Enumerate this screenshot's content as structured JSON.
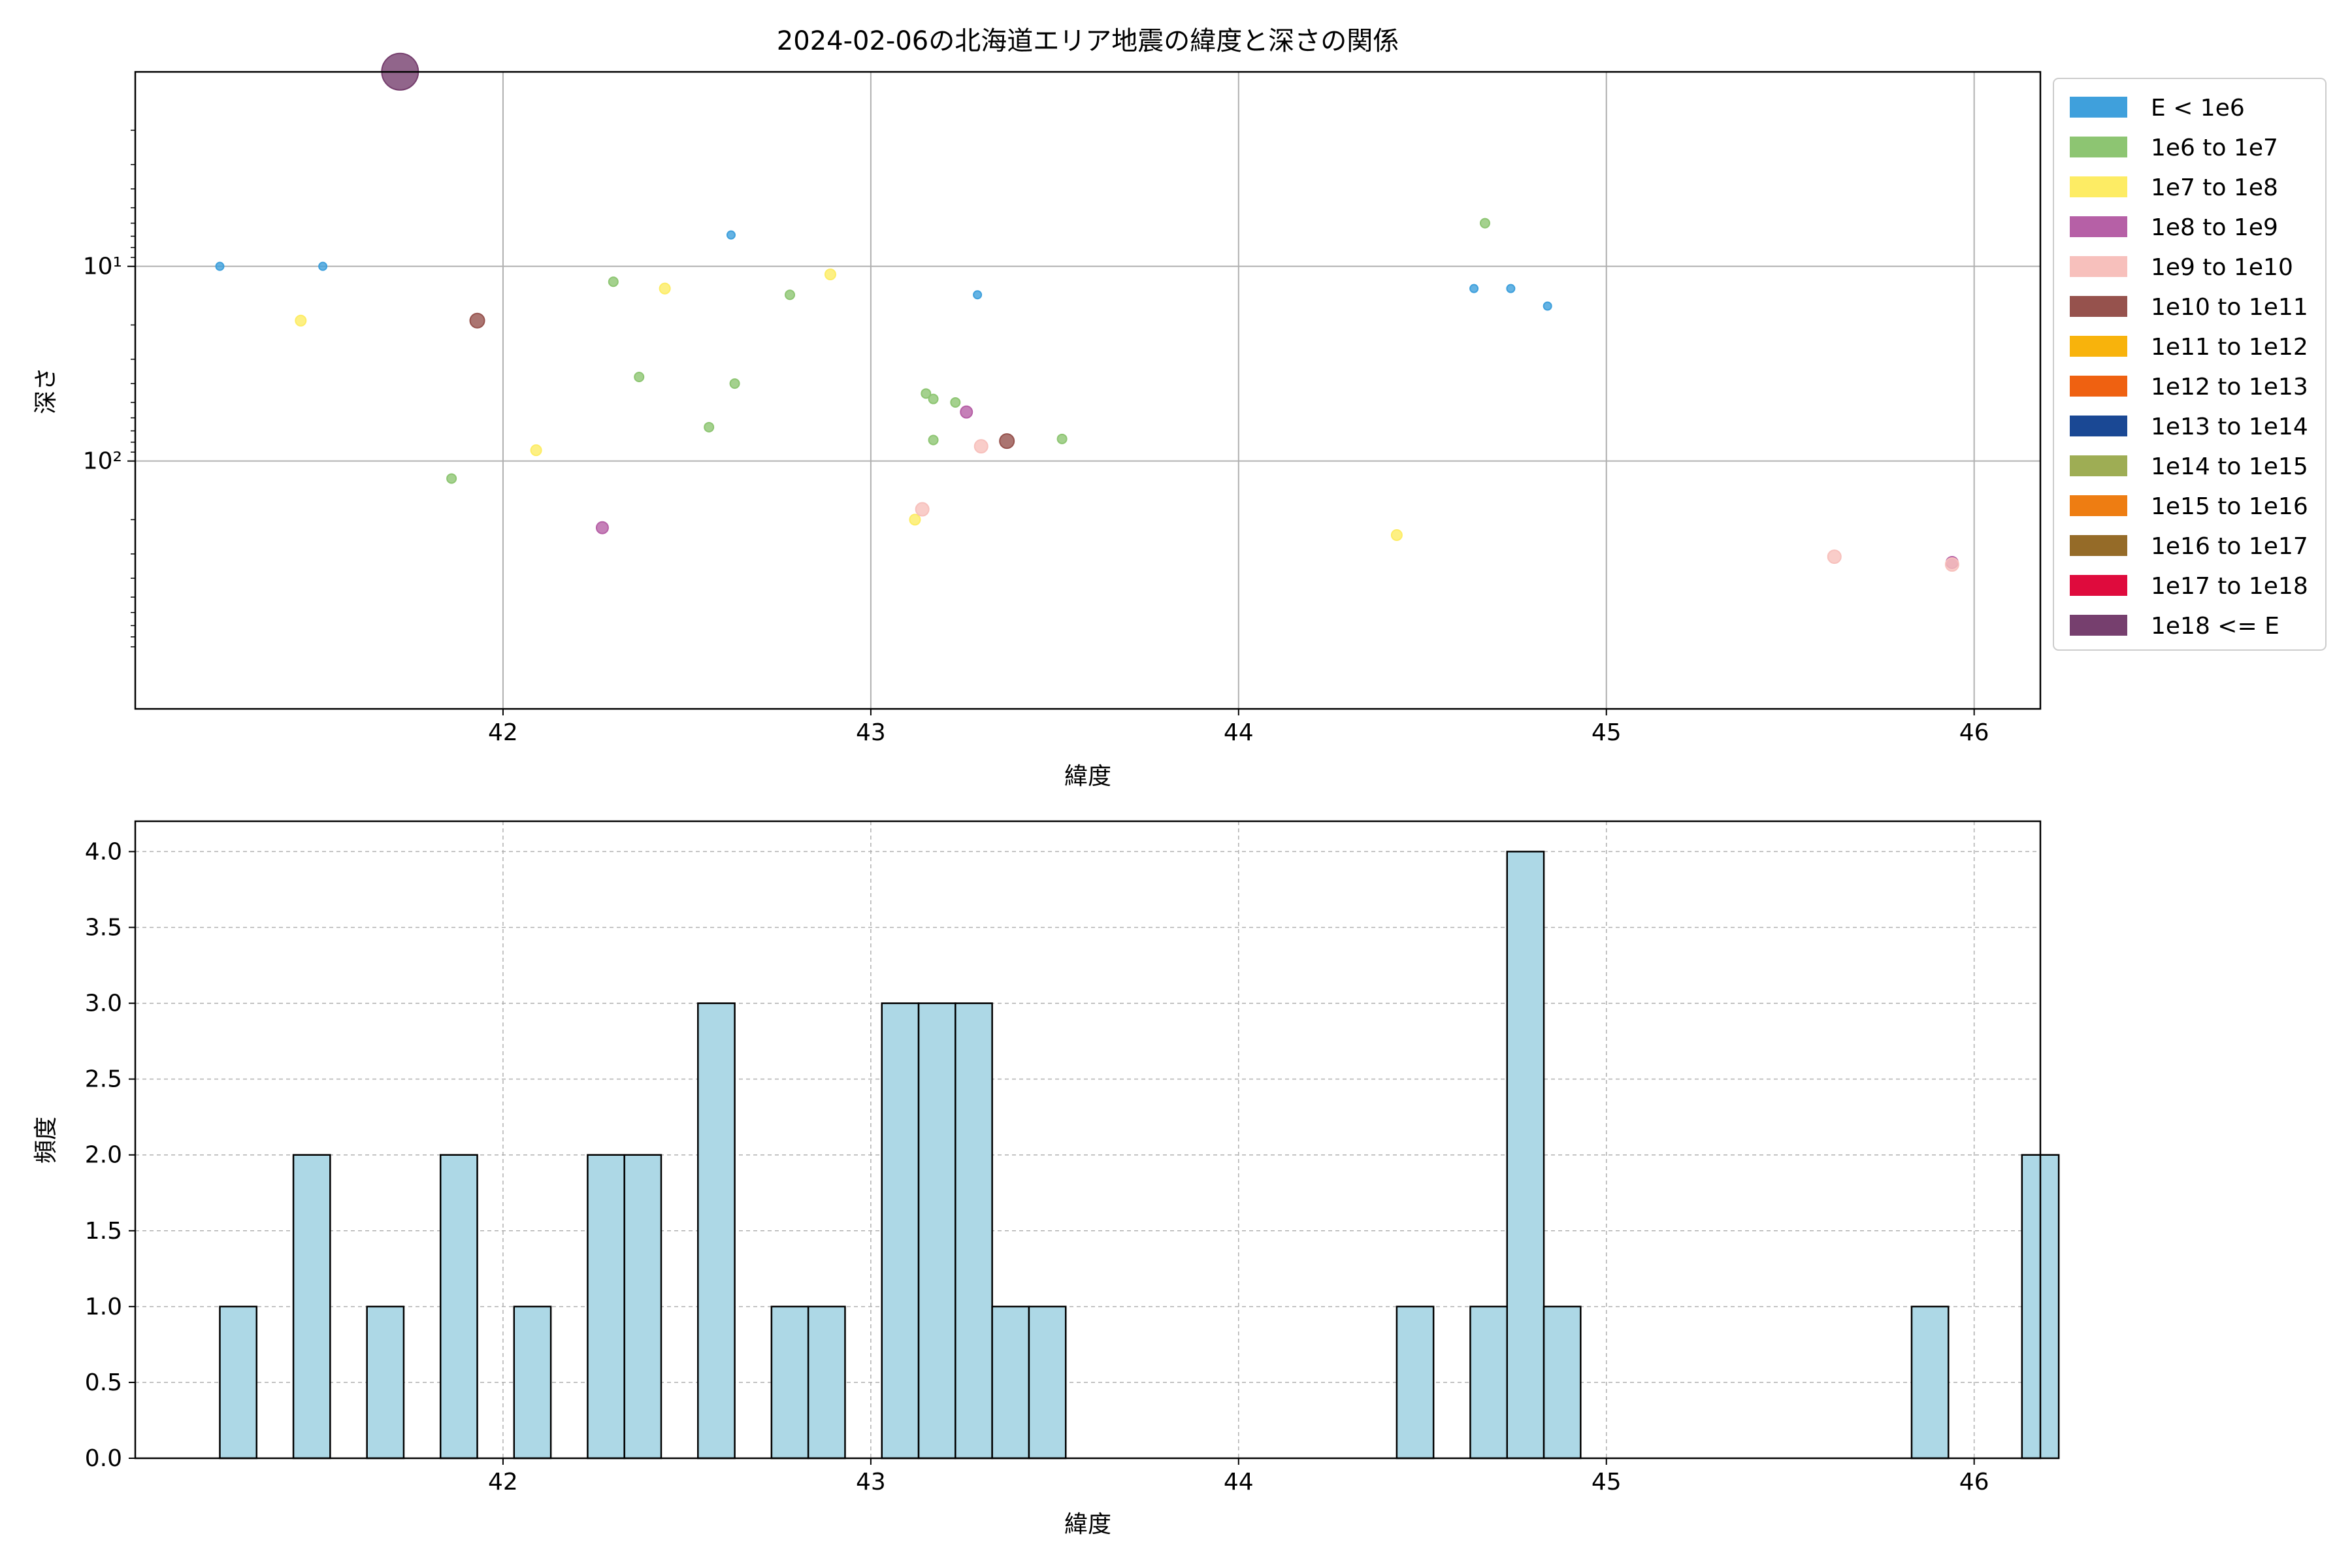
{
  "chart_data": [
    {
      "type": "scatter",
      "title": "2024-02-06の北海道エリア地震の緯度と深さの関係",
      "xlabel": "緯度",
      "ylabel": "深さ",
      "xlim": [
        41.0,
        46.18
      ],
      "ylim_log": [
        0.001,
        3.273
      ],
      "y_scale": "log, inverted",
      "xticks": [
        42,
        43,
        44,
        45,
        46
      ],
      "xtick_labels": [
        "42",
        "43",
        "44",
        "45",
        "46"
      ],
      "yticks": [
        10,
        100
      ],
      "ytick_labels": [
        "10¹",
        "10²"
      ],
      "grid": true,
      "legend_position": "outside-right",
      "legend": [
        {
          "label": "E < 1e6",
          "color": "#3fa0dc"
        },
        {
          "label": "1e6 to 1e7",
          "color": "#8dc572"
        },
        {
          "label": "1e7 to 1e8",
          "color": "#fdec64"
        },
        {
          "label": "1e8 to 1e9",
          "color": "#b660a6"
        },
        {
          "label": "1e9 to 1e10",
          "color": "#f7c0bc"
        },
        {
          "label": "1e10 to 1e11",
          "color": "#96524d"
        },
        {
          "label": "1e11 to 1e12",
          "color": "#f8b30c"
        },
        {
          "label": "1e12 to 1e13",
          "color": "#ef6111"
        },
        {
          "label": "1e13 to 1e14",
          "color": "#1a4894"
        },
        {
          "label": "1e14 to 1e15",
          "color": "#9ead54"
        },
        {
          "label": "1e15 to 1e16",
          "color": "#ee7d12"
        },
        {
          "label": "1e16 to 1e17",
          "color": "#956b28"
        },
        {
          "label": "1e17 to 1e18",
          "color": "#df0b3d"
        },
        {
          "label": "1e18 <= E",
          "color": "#763f6e"
        }
      ],
      "points": [
        {
          "x": 41.23,
          "y": 10.0,
          "cls": 0
        },
        {
          "x": 41.51,
          "y": 10.0,
          "cls": 0
        },
        {
          "x": 42.62,
          "y": 6.9,
          "cls": 0
        },
        {
          "x": 43.29,
          "y": 14.0,
          "cls": 0
        },
        {
          "x": 44.64,
          "y": 13.0,
          "cls": 0
        },
        {
          "x": 44.74,
          "y": 13.0,
          "cls": 0
        },
        {
          "x": 44.84,
          "y": 16.0,
          "cls": 0
        },
        {
          "x": 44.67,
          "y": 6.0,
          "cls": 1
        },
        {
          "x": 42.3,
          "y": 12.0,
          "cls": 1
        },
        {
          "x": 42.78,
          "y": 14.0,
          "cls": 1
        },
        {
          "x": 42.37,
          "y": 37.0,
          "cls": 1
        },
        {
          "x": 42.63,
          "y": 40.0,
          "cls": 1
        },
        {
          "x": 43.15,
          "y": 45.0,
          "cls": 1
        },
        {
          "x": 43.17,
          "y": 48.0,
          "cls": 1
        },
        {
          "x": 43.23,
          "y": 50.0,
          "cls": 1
        },
        {
          "x": 42.56,
          "y": 67.0,
          "cls": 1
        },
        {
          "x": 43.17,
          "y": 78.0,
          "cls": 1
        },
        {
          "x": 43.52,
          "y": 77.0,
          "cls": 1
        },
        {
          "x": 41.86,
          "y": 123.0,
          "cls": 1
        },
        {
          "x": 41.45,
          "y": 19.0,
          "cls": 2
        },
        {
          "x": 42.44,
          "y": 13.0,
          "cls": 2
        },
        {
          "x": 42.89,
          "y": 11.0,
          "cls": 2
        },
        {
          "x": 42.09,
          "y": 88.0,
          "cls": 2
        },
        {
          "x": 43.12,
          "y": 200.0,
          "cls": 2
        },
        {
          "x": 44.43,
          "y": 240.0,
          "cls": 2
        },
        {
          "x": 43.26,
          "y": 56.0,
          "cls": 3
        },
        {
          "x": 42.27,
          "y": 220.0,
          "cls": 3
        },
        {
          "x": 45.94,
          "y": 332.0,
          "cls": 3
        },
        {
          "x": 43.3,
          "y": 84.0,
          "cls": 4
        },
        {
          "x": 43.14,
          "y": 177.0,
          "cls": 4
        },
        {
          "x": 45.62,
          "y": 310.0,
          "cls": 4
        },
        {
          "x": 45.94,
          "y": 340.0,
          "cls": 4
        },
        {
          "x": 41.93,
          "y": 19.0,
          "cls": 5
        },
        {
          "x": 43.37,
          "y": 79.0,
          "cls": 5
        },
        {
          "x": 41.72,
          "y": 1.0,
          "cls": 13
        }
      ]
    },
    {
      "type": "bar",
      "xlabel": "緯度",
      "ylabel": "頻度",
      "xlim": [
        41.0,
        46.18
      ],
      "ylim": [
        0,
        4.2
      ],
      "xticks": [
        42,
        43,
        44,
        45,
        46
      ],
      "xtick_labels": [
        "42",
        "43",
        "44",
        "45",
        "46"
      ],
      "yticks": [
        0,
        0.5,
        1,
        1.5,
        2,
        2.5,
        3,
        3.5,
        4
      ],
      "ytick_labels": [
        "0.0",
        "0.5",
        "1.0",
        "1.5",
        "2.0",
        "2.5",
        "3.0",
        "3.5",
        "4.0"
      ],
      "grid": true,
      "bar_color": "#add8e6",
      "bin_start": 41.23,
      "bin_width": 0.1,
      "counts": [
        1,
        0,
        2,
        0,
        1,
        0,
        2,
        0,
        1,
        0,
        2,
        2,
        0,
        3,
        0,
        1,
        1,
        0,
        3,
        3,
        3,
        1,
        1,
        0,
        0,
        0,
        0,
        0,
        0,
        0,
        0,
        0,
        1,
        0,
        1,
        4,
        1,
        0,
        0,
        0,
        0,
        0,
        0,
        0,
        0,
        0,
        1,
        0,
        0,
        2
      ]
    }
  ]
}
